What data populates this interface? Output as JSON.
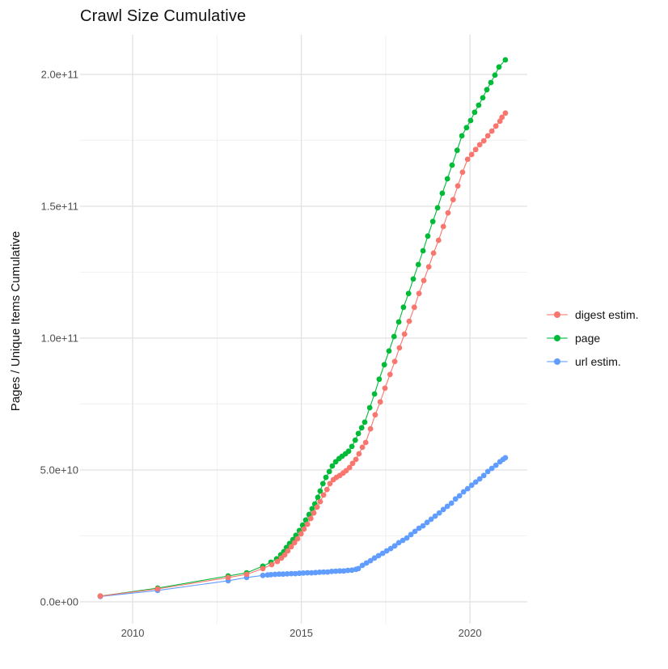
{
  "figure": {
    "title": "Crawl Size Cumulative",
    "y_axis_label": "Pages / Unique Items Cumulative"
  },
  "chart_data": {
    "type": "line",
    "title": "Crawl Size Cumulative",
    "xlabel": "",
    "ylabel": "Pages / Unique Items Cumulative",
    "x_unit": "year",
    "y_unit": "pages / unique items (cumulative count)",
    "value_scale": "billions (1e9)",
    "x_domain": [
      2008.44,
      2021.7
    ],
    "y_domain_billions": [
      -8.3,
      215.0
    ],
    "grid": {
      "major_color": "#e3e3e3",
      "minor_color": "#f0f0f0",
      "background": "#ffffff"
    },
    "legend_position": "right",
    "x_ticks": [
      {
        "value": 2010,
        "label": "2010"
      },
      {
        "value": 2015,
        "label": "2015"
      },
      {
        "value": 2020,
        "label": "2020"
      }
    ],
    "x_minor_ticks": [
      2012.5,
      2017.5
    ],
    "y_ticks": [
      {
        "value_billions": 0,
        "label": "0.0e+00"
      },
      {
        "value_billions": 50,
        "label": "5.0e+10"
      },
      {
        "value_billions": 100,
        "label": "1.0e+11"
      },
      {
        "value_billions": 150,
        "label": "1.5e+11"
      },
      {
        "value_billions": 200,
        "label": "2.0e+11"
      }
    ],
    "y_minor_ticks_billions": [
      25,
      75,
      125,
      175
    ],
    "series": [
      {
        "name": "digest estim.",
        "color": "#F8766D",
        "points_year_billions": [
          [
            2009.04,
            2.2
          ],
          [
            2010.74,
            4.9
          ],
          [
            2012.83,
            9.2
          ],
          [
            2013.38,
            10.4
          ],
          [
            2013.86,
            12.6
          ],
          [
            2014.12,
            14.1
          ],
          [
            2014.29,
            15.3
          ],
          [
            2014.41,
            16.6
          ],
          [
            2014.51,
            17.8
          ],
          [
            2014.6,
            19.3
          ],
          [
            2014.7,
            20.9
          ],
          [
            2014.8,
            22.4
          ],
          [
            2014.89,
            23.9
          ],
          [
            2014.99,
            25.8
          ],
          [
            2015.08,
            27.6
          ],
          [
            2015.18,
            29.4
          ],
          [
            2015.28,
            31.6
          ],
          [
            2015.37,
            33.7
          ],
          [
            2015.47,
            35.9
          ],
          [
            2015.56,
            38.0
          ],
          [
            2015.66,
            40.5
          ],
          [
            2015.76,
            42.6
          ],
          [
            2015.85,
            44.8
          ],
          [
            2015.95,
            46.3
          ],
          [
            2016.04,
            47.2
          ],
          [
            2016.14,
            47.9
          ],
          [
            2016.24,
            48.8
          ],
          [
            2016.33,
            49.7
          ],
          [
            2016.43,
            50.9
          ],
          [
            2016.52,
            52.5
          ],
          [
            2016.62,
            54.0
          ],
          [
            2016.71,
            56.1
          ],
          [
            2016.81,
            58.6
          ],
          [
            2016.91,
            60.4
          ],
          [
            2017.05,
            65.6
          ],
          [
            2017.19,
            70.9
          ],
          [
            2017.34,
            75.8
          ],
          [
            2017.48,
            81.0
          ],
          [
            2017.63,
            86.2
          ],
          [
            2017.77,
            91.1
          ],
          [
            2017.91,
            96.3
          ],
          [
            2018.06,
            101.5
          ],
          [
            2018.2,
            106.4
          ],
          [
            2018.35,
            111.7
          ],
          [
            2018.49,
            116.9
          ],
          [
            2018.63,
            121.8
          ],
          [
            2018.78,
            127.0
          ],
          [
            2018.92,
            132.2
          ],
          [
            2019.07,
            137.1
          ],
          [
            2019.21,
            142.3
          ],
          [
            2019.35,
            147.5
          ],
          [
            2019.5,
            152.5
          ],
          [
            2019.64,
            157.7
          ],
          [
            2019.78,
            162.9
          ],
          [
            2019.93,
            167.8
          ],
          [
            2020.05,
            169.6
          ],
          [
            2020.17,
            171.5
          ],
          [
            2020.29,
            173.3
          ],
          [
            2020.41,
            174.8
          ],
          [
            2020.53,
            176.7
          ],
          [
            2020.65,
            178.5
          ],
          [
            2020.77,
            180.4
          ],
          [
            2020.89,
            182.2
          ],
          [
            2020.95,
            183.7
          ],
          [
            2021.05,
            185.3
          ]
        ]
      },
      {
        "name": "page",
        "color": "#00BA38",
        "points_year_billions": [
          [
            2009.04,
            2.2
          ],
          [
            2010.74,
            5.2
          ],
          [
            2012.83,
            9.8
          ],
          [
            2013.38,
            11.0
          ],
          [
            2013.86,
            13.5
          ],
          [
            2014.1,
            15.0
          ],
          [
            2014.27,
            16.3
          ],
          [
            2014.39,
            17.8
          ],
          [
            2014.48,
            19.0
          ],
          [
            2014.56,
            20.6
          ],
          [
            2014.65,
            22.1
          ],
          [
            2014.75,
            23.6
          ],
          [
            2014.84,
            25.2
          ],
          [
            2014.94,
            27.0
          ],
          [
            2015.04,
            29.1
          ],
          [
            2015.13,
            31.0
          ],
          [
            2015.23,
            33.1
          ],
          [
            2015.32,
            35.3
          ],
          [
            2015.4,
            37.1
          ],
          [
            2015.49,
            39.6
          ],
          [
            2015.56,
            42.0
          ],
          [
            2015.64,
            44.8
          ],
          [
            2015.73,
            47.2
          ],
          [
            2015.83,
            49.4
          ],
          [
            2015.92,
            51.5
          ],
          [
            2016.02,
            53.1
          ],
          [
            2016.12,
            54.3
          ],
          [
            2016.21,
            55.2
          ],
          [
            2016.31,
            56.1
          ],
          [
            2016.4,
            57.1
          ],
          [
            2016.5,
            58.9
          ],
          [
            2016.6,
            61.3
          ],
          [
            2016.69,
            63.8
          ],
          [
            2016.79,
            66.0
          ],
          [
            2016.88,
            68.1
          ],
          [
            2017.03,
            73.6
          ],
          [
            2017.17,
            78.8
          ],
          [
            2017.31,
            84.4
          ],
          [
            2017.46,
            89.9
          ],
          [
            2017.6,
            95.1
          ],
          [
            2017.75,
            100.6
          ],
          [
            2017.89,
            106.1
          ],
          [
            2018.03,
            111.7
          ],
          [
            2018.18,
            116.9
          ],
          [
            2018.32,
            122.4
          ],
          [
            2018.47,
            127.9
          ],
          [
            2018.61,
            133.1
          ],
          [
            2018.75,
            138.7
          ],
          [
            2018.9,
            144.2
          ],
          [
            2019.04,
            149.4
          ],
          [
            2019.18,
            154.9
          ],
          [
            2019.33,
            160.4
          ],
          [
            2019.47,
            165.6
          ],
          [
            2019.62,
            171.2
          ],
          [
            2019.76,
            176.7
          ],
          [
            2019.9,
            179.8
          ],
          [
            2020.02,
            182.5
          ],
          [
            2020.14,
            185.6
          ],
          [
            2020.26,
            188.3
          ],
          [
            2020.38,
            191.1
          ],
          [
            2020.5,
            194.2
          ],
          [
            2020.62,
            196.9
          ],
          [
            2020.74,
            199.7
          ],
          [
            2020.86,
            202.8
          ],
          [
            2021.05,
            205.5
          ]
        ]
      },
      {
        "name": "url estim.",
        "color": "#619CFF",
        "points_year_billions": [
          [
            2009.04,
            2.0
          ],
          [
            2010.74,
            4.3
          ],
          [
            2012.83,
            8.0
          ],
          [
            2013.38,
            9.2
          ],
          [
            2013.86,
            10.0
          ],
          [
            2014.0,
            10.2
          ],
          [
            2014.1,
            10.3
          ],
          [
            2014.22,
            10.4
          ],
          [
            2014.34,
            10.5
          ],
          [
            2014.46,
            10.5
          ],
          [
            2014.58,
            10.6
          ],
          [
            2014.7,
            10.7
          ],
          [
            2014.82,
            10.7
          ],
          [
            2014.94,
            10.8
          ],
          [
            2015.06,
            10.9
          ],
          [
            2015.18,
            11.0
          ],
          [
            2015.3,
            11.0
          ],
          [
            2015.42,
            11.1
          ],
          [
            2015.54,
            11.2
          ],
          [
            2015.66,
            11.3
          ],
          [
            2015.78,
            11.3
          ],
          [
            2015.9,
            11.5
          ],
          [
            2016.02,
            11.6
          ],
          [
            2016.14,
            11.7
          ],
          [
            2016.26,
            11.7
          ],
          [
            2016.38,
            11.9
          ],
          [
            2016.5,
            12.0
          ],
          [
            2016.62,
            12.3
          ],
          [
            2016.69,
            12.6
          ],
          [
            2016.81,
            13.8
          ],
          [
            2016.93,
            14.7
          ],
          [
            2017.05,
            15.6
          ],
          [
            2017.17,
            16.6
          ],
          [
            2017.29,
            17.5
          ],
          [
            2017.41,
            18.4
          ],
          [
            2017.53,
            19.3
          ],
          [
            2017.65,
            20.2
          ],
          [
            2017.77,
            21.2
          ],
          [
            2017.89,
            22.4
          ],
          [
            2018.01,
            23.3
          ],
          [
            2018.13,
            24.2
          ],
          [
            2018.25,
            25.5
          ],
          [
            2018.37,
            26.7
          ],
          [
            2018.49,
            27.9
          ],
          [
            2018.61,
            28.8
          ],
          [
            2018.73,
            30.1
          ],
          [
            2018.85,
            31.3
          ],
          [
            2018.97,
            32.5
          ],
          [
            2019.09,
            33.7
          ],
          [
            2019.21,
            35.0
          ],
          [
            2019.33,
            36.2
          ],
          [
            2019.45,
            37.4
          ],
          [
            2019.57,
            39.0
          ],
          [
            2019.69,
            40.2
          ],
          [
            2019.81,
            41.7
          ],
          [
            2019.93,
            42.9
          ],
          [
            2020.05,
            44.2
          ],
          [
            2020.17,
            45.4
          ],
          [
            2020.29,
            46.6
          ],
          [
            2020.41,
            47.9
          ],
          [
            2020.53,
            49.4
          ],
          [
            2020.65,
            50.6
          ],
          [
            2020.77,
            51.8
          ],
          [
            2020.89,
            53.1
          ],
          [
            2020.98,
            54.0
          ],
          [
            2021.05,
            54.6
          ]
        ]
      }
    ]
  }
}
